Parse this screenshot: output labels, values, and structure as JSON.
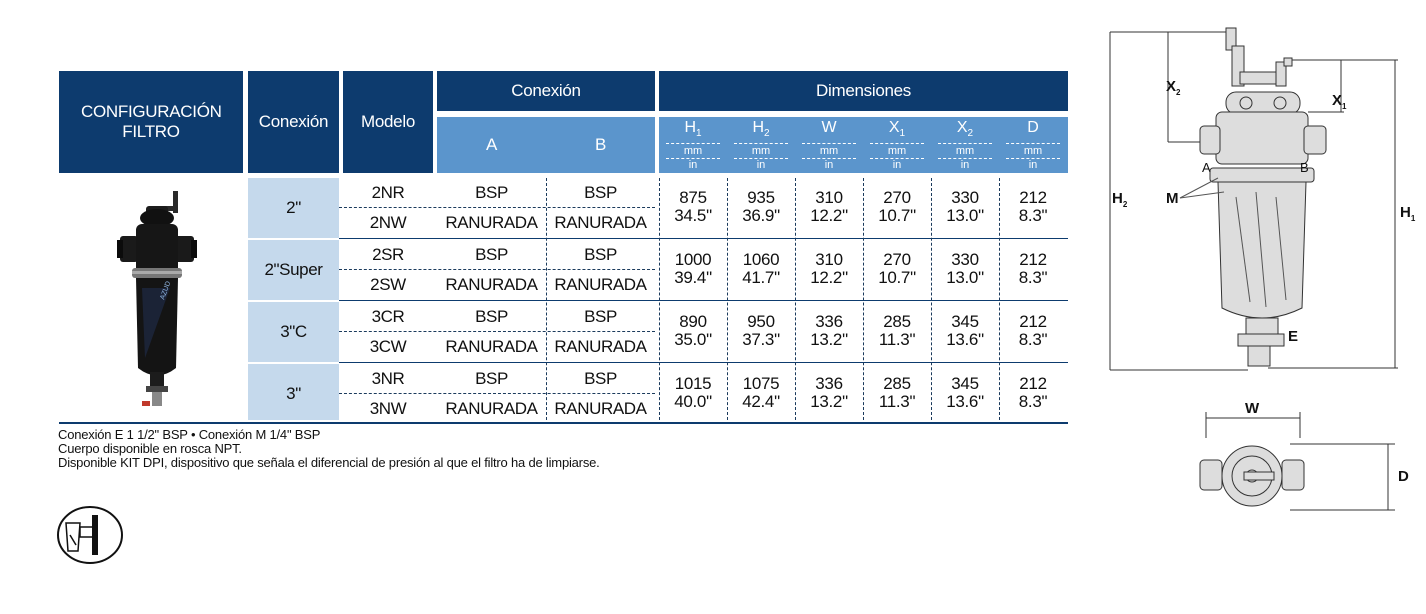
{
  "header": {
    "config_label": "CONFIGURACIÓN FILTRO",
    "conexion_label": "Conexión",
    "modelo_label": "Modelo",
    "conexion_group": "Conexión",
    "col_a": "A",
    "col_b": "B",
    "dimensiones_group": "Dimensiones",
    "dim_columns": [
      {
        "sym": "H",
        "sub": "1",
        "unit1": "mm",
        "unit2": "in"
      },
      {
        "sym": "H",
        "sub": "2",
        "unit1": "mm",
        "unit2": "in"
      },
      {
        "sym": "W",
        "sub": "",
        "unit1": "mm",
        "unit2": "in"
      },
      {
        "sym": "X",
        "sub": "1",
        "unit1": "mm",
        "unit2": "in"
      },
      {
        "sym": "X",
        "sub": "2",
        "unit1": "mm",
        "unit2": "in"
      },
      {
        "sym": "D",
        "sub": "",
        "unit1": "mm",
        "unit2": "in"
      }
    ]
  },
  "groups": [
    {
      "conexion": "2\"",
      "models": [
        {
          "modelo": "2NR",
          "a": "BSP",
          "b": "BSP"
        },
        {
          "modelo": "2NW",
          "a": "RANURADA",
          "b": "RANURADA"
        }
      ],
      "dims": [
        {
          "mm": "875",
          "in": "34.5\""
        },
        {
          "mm": "935",
          "in": "36.9\""
        },
        {
          "mm": "310",
          "in": "12.2\""
        },
        {
          "mm": "270",
          "in": "10.7\""
        },
        {
          "mm": "330",
          "in": "13.0\""
        },
        {
          "mm": "212",
          "in": "8.3\""
        }
      ]
    },
    {
      "conexion": "2\"Super",
      "models": [
        {
          "modelo": "2SR",
          "a": "BSP",
          "b": "BSP"
        },
        {
          "modelo": "2SW",
          "a": "RANURADA",
          "b": "RANURADA"
        }
      ],
      "dims": [
        {
          "mm": "1000",
          "in": "39.4\""
        },
        {
          "mm": "1060",
          "in": "41.7\""
        },
        {
          "mm": "310",
          "in": "12.2\""
        },
        {
          "mm": "270",
          "in": "10.7\""
        },
        {
          "mm": "330",
          "in": "13.0\""
        },
        {
          "mm": "212",
          "in": "8.3\""
        }
      ]
    },
    {
      "conexion": "3\"C",
      "models": [
        {
          "modelo": "3CR",
          "a": "BSP",
          "b": "BSP"
        },
        {
          "modelo": "3CW",
          "a": "RANURADA",
          "b": "RANURADA"
        }
      ],
      "dims": [
        {
          "mm": "890",
          "in": "35.0\""
        },
        {
          "mm": "950",
          "in": "37.3\""
        },
        {
          "mm": "336",
          "in": "13.2\""
        },
        {
          "mm": "285",
          "in": "11.3\""
        },
        {
          "mm": "345",
          "in": "13.6\""
        },
        {
          "mm": "212",
          "in": "8.3\""
        }
      ]
    },
    {
      "conexion": "3\"",
      "models": [
        {
          "modelo": "3NR",
          "a": "BSP",
          "b": "BSP"
        },
        {
          "modelo": "3NW",
          "a": "RANURADA",
          "b": "RANURADA"
        }
      ],
      "dims": [
        {
          "mm": "1015",
          "in": "40.0\""
        },
        {
          "mm": "1075",
          "in": "42.4\""
        },
        {
          "mm": "336",
          "in": "13.2\""
        },
        {
          "mm": "285",
          "in": "11.3\""
        },
        {
          "mm": "345",
          "in": "13.6\""
        },
        {
          "mm": "212",
          "in": "8.3\""
        }
      ]
    }
  ],
  "notes": [
    "Conexión E  1 1/2\" BSP • Conexión M 1/4\" BSP",
    "Cuerpo disponible en rosca NPT.",
    "Disponible  KIT DPI, dispositivo que señala el diferencial de presión al que el filtro ha de limpiarse."
  ],
  "product_label": "AZUD",
  "diagram": {
    "x2": "X",
    "x2_sub": "2",
    "x1": "X",
    "x1_sub": "1",
    "h2": "H",
    "h2_sub": "2",
    "h1": "H",
    "h1_sub": "1",
    "a": "A",
    "b": "B",
    "m": "M",
    "e": "E",
    "w": "W",
    "d": "D"
  },
  "colors": {
    "navy": "#0d3b6e",
    "sky": "#5b95cc",
    "light": "#c5d9ec"
  }
}
